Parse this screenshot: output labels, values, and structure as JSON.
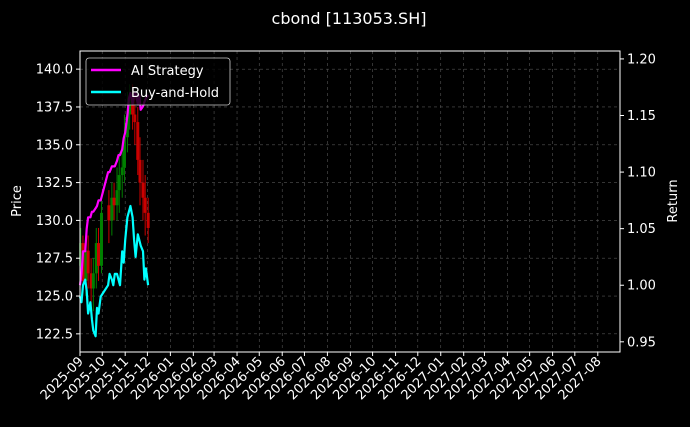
{
  "chart_data": {
    "type": "line",
    "title": "cbond [113053.SH]",
    "xlabel": "",
    "ylabel": "Price",
    "y2label": "Return",
    "background": "#000000",
    "grid": true,
    "legend_position": "top-left",
    "xlim": [
      "2025-09-01",
      "2027-08-31"
    ],
    "ylim": [
      121.3,
      141.2
    ],
    "y2lim": [
      0.941,
      1.207
    ],
    "x_ticks": [
      "2025-09",
      "2025-10",
      "2025-11",
      "2025-12",
      "2026-01",
      "2026-02",
      "2026-03",
      "2026-04",
      "2026-05",
      "2026-06",
      "2026-07",
      "2026-08",
      "2026-09",
      "2026-10",
      "2026-11",
      "2026-12",
      "2027-01",
      "2027-02",
      "2027-03",
      "2027-04",
      "2027-05",
      "2027-06",
      "2027-07",
      "2027-08"
    ],
    "y_ticks": [
      122.5,
      125.0,
      127.5,
      130.0,
      132.5,
      135.0,
      137.5,
      140.0
    ],
    "y_tick_labels": [
      "122.5",
      "125.0",
      "127.5",
      "130.0",
      "132.5",
      "135.0",
      "137.5",
      "140.0"
    ],
    "y2_ticks": [
      0.95,
      1.0,
      1.05,
      1.1,
      1.15,
      1.2
    ],
    "y2_tick_labels": [
      "0.95",
      "1.00",
      "1.05",
      "1.10",
      "1.15",
      "1.20"
    ],
    "series": [
      {
        "name": "AI Strategy",
        "axis": "right",
        "color": "#ff00ff",
        "x": [
          "2025-09-01",
          "2025-09-03",
          "2025-09-05",
          "2025-09-08",
          "2025-09-10",
          "2025-09-12",
          "2025-09-15",
          "2025-09-17",
          "2025-09-19",
          "2025-09-22",
          "2025-09-24",
          "2025-09-26",
          "2025-09-29",
          "2025-10-09",
          "2025-10-11",
          "2025-10-14",
          "2025-10-16",
          "2025-10-18",
          "2025-10-21",
          "2025-10-23",
          "2025-10-25",
          "2025-10-28",
          "2025-10-30",
          "2025-11-01",
          "2025-11-04",
          "2025-11-06",
          "2025-11-08",
          "2025-11-11",
          "2025-11-13",
          "2025-11-15",
          "2025-11-18",
          "2025-11-20",
          "2025-11-22",
          "2025-11-25",
          "2025-11-27",
          "2025-11-29",
          "2025-12-02"
        ],
        "values": [
          1.0,
          1.01,
          1.03,
          1.03,
          1.05,
          1.06,
          1.06,
          1.065,
          1.065,
          1.068,
          1.07,
          1.075,
          1.075,
          1.1,
          1.1,
          1.105,
          1.105,
          1.105,
          1.11,
          1.115,
          1.115,
          1.12,
          1.13,
          1.135,
          1.15,
          1.165,
          1.17,
          1.16,
          1.168,
          1.17,
          1.16,
          1.168,
          1.155,
          1.158,
          1.162,
          1.165,
          1.168
        ]
      },
      {
        "name": "Buy-and-Hold",
        "axis": "right",
        "color": "#00ffff",
        "x": [
          "2025-09-01",
          "2025-09-03",
          "2025-09-05",
          "2025-09-08",
          "2025-09-10",
          "2025-09-12",
          "2025-09-15",
          "2025-09-17",
          "2025-09-19",
          "2025-09-22",
          "2025-09-24",
          "2025-09-26",
          "2025-09-29",
          "2025-10-09",
          "2025-10-11",
          "2025-10-14",
          "2025-10-16",
          "2025-10-18",
          "2025-10-21",
          "2025-10-23",
          "2025-10-25",
          "2025-10-28",
          "2025-10-30",
          "2025-11-01",
          "2025-11-04",
          "2025-11-06",
          "2025-11-08",
          "2025-11-11",
          "2025-11-13",
          "2025-11-15",
          "2025-11-18",
          "2025-11-20",
          "2025-11-22",
          "2025-11-25",
          "2025-11-27",
          "2025-11-29",
          "2025-12-02"
        ],
        "values": [
          0.99,
          0.985,
          1.0,
          1.005,
          0.995,
          0.975,
          0.985,
          0.97,
          0.96,
          0.955,
          0.98,
          0.975,
          0.99,
          1.0,
          1.01,
          1.005,
          1.0,
          1.01,
          1.01,
          1.005,
          1.0,
          1.03,
          1.02,
          1.04,
          1.06,
          1.065,
          1.07,
          1.06,
          1.04,
          1.025,
          1.045,
          1.04,
          1.035,
          1.03,
          1.005,
          1.015,
          1.0
        ]
      },
      {
        "name": "",
        "type": "candlestick",
        "axis": "left",
        "up_color": "#008000",
        "down_color": "#cc0000",
        "x": [
          "2025-09-02",
          "2025-09-05",
          "2025-09-09",
          "2025-09-12",
          "2025-09-16",
          "2025-09-19",
          "2025-09-23",
          "2025-09-26",
          "2025-09-30",
          "2025-10-10",
          "2025-10-14",
          "2025-10-17",
          "2025-10-21",
          "2025-10-24",
          "2025-10-28",
          "2025-10-31",
          "2025-11-04",
          "2025-11-07",
          "2025-11-11",
          "2025-11-14",
          "2025-11-18",
          "2025-11-21",
          "2025-11-25",
          "2025-11-28",
          "2025-12-02"
        ],
        "open": [
          127.0,
          128.5,
          126.0,
          128.0,
          126.5,
          125.5,
          126.5,
          128.5,
          127.0,
          131.0,
          130.0,
          131.5,
          131.0,
          132.0,
          133.0,
          133.5,
          135.5,
          137.0,
          138.0,
          137.0,
          136.5,
          134.0,
          132.5,
          131.5,
          130.5
        ],
        "close": [
          128.5,
          126.0,
          128.0,
          126.5,
          125.5,
          126.5,
          128.5,
          127.0,
          130.5,
          130.0,
          131.5,
          131.0,
          132.0,
          133.0,
          133.5,
          135.5,
          137.0,
          138.0,
          137.0,
          136.5,
          134.0,
          132.5,
          131.5,
          130.5,
          129.5
        ],
        "high": [
          129.5,
          129.0,
          129.0,
          129.0,
          127.5,
          127.5,
          129.5,
          129.5,
          131.5,
          132.0,
          132.5,
          132.5,
          133.5,
          134.5,
          135.0,
          137.0,
          138.5,
          139.0,
          139.0,
          138.5,
          137.5,
          135.5,
          134.0,
          133.0,
          131.5
        ],
        "low": [
          126.0,
          125.5,
          125.0,
          125.5,
          124.0,
          124.0,
          125.5,
          126.0,
          126.5,
          128.5,
          129.0,
          130.0,
          130.0,
          130.5,
          131.5,
          132.5,
          134.5,
          136.0,
          136.0,
          135.0,
          133.0,
          131.0,
          130.0,
          129.0,
          128.5
        ]
      }
    ]
  }
}
